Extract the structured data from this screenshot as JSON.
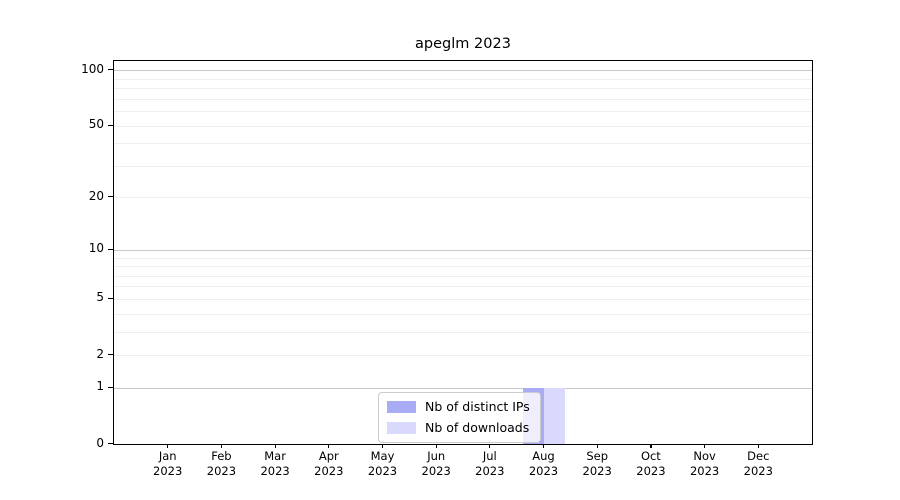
{
  "chart_data": {
    "type": "bar",
    "title": "apeglm 2023",
    "categories": [
      {
        "month": "Jan",
        "year": "2023"
      },
      {
        "month": "Feb",
        "year": "2023"
      },
      {
        "month": "Mar",
        "year": "2023"
      },
      {
        "month": "Apr",
        "year": "2023"
      },
      {
        "month": "May",
        "year": "2023"
      },
      {
        "month": "Jun",
        "year": "2023"
      },
      {
        "month": "Jul",
        "year": "2023"
      },
      {
        "month": "Aug",
        "year": "2023"
      },
      {
        "month": "Sep",
        "year": "2023"
      },
      {
        "month": "Oct",
        "year": "2023"
      },
      {
        "month": "Nov",
        "year": "2023"
      },
      {
        "month": "Dec",
        "year": "2023"
      }
    ],
    "series": [
      {
        "name": "Nb of distinct IPs",
        "color": "#a9abf5",
        "values": [
          0,
          0,
          0,
          0,
          0,
          0,
          0,
          1,
          0,
          0,
          0,
          0
        ]
      },
      {
        "name": "Nb of downloads",
        "color": "#d9dafb",
        "values": [
          0,
          0,
          0,
          0,
          0,
          0,
          0,
          1,
          0,
          0,
          0,
          0
        ]
      }
    ],
    "y_axis": {
      "scale": "log1p",
      "max": 112,
      "tick_labels": [
        100,
        50,
        20,
        10,
        5,
        2,
        1,
        0
      ],
      "gridlines_major": [
        100,
        10,
        1
      ],
      "gridlines_minor": [
        90,
        80,
        70,
        60,
        50,
        40,
        30,
        20,
        9,
        8,
        7,
        6,
        5,
        4,
        3,
        2
      ]
    },
    "legend": {
      "position": "bottom-center"
    },
    "colors": {
      "grid_major": "#c9c9c9",
      "grid_minor": "#efefef",
      "axis": "#000000",
      "text": "#000000"
    }
  }
}
